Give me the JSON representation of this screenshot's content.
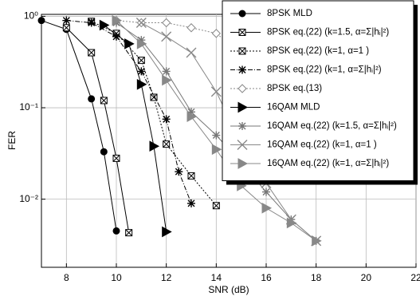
{
  "chart_data": {
    "type": "line",
    "x_label": "SNR (dB)",
    "y_label": "FER",
    "xlim": [
      7,
      22
    ],
    "xticks": [
      8,
      10,
      12,
      14,
      16,
      18,
      20,
      22
    ],
    "ylim": [
      0.0018,
      1.05
    ],
    "log_y": true,
    "grid": true,
    "yticks": [
      {
        "value": 0.01,
        "label": "10⁻²"
      },
      {
        "value": 0.1,
        "label": "10⁻¹"
      },
      {
        "value": 1,
        "label": "10⁰"
      }
    ],
    "legend": "upper right",
    "series": [
      {
        "name": "8PSK MLD",
        "color": "#000000",
        "marker": "circle",
        "dash": "solid",
        "x": [
          7,
          8,
          9,
          9.5,
          10
        ],
        "values": [
          0.9,
          0.72,
          0.125,
          0.033,
          0.0045
        ]
      },
      {
        "name": "8PSK eq.(22) (k=1.5, α=Σ|hᵢ|²)",
        "color": "#000000",
        "marker": "boxx",
        "dash": "solid",
        "x": [
          8,
          9,
          9.5,
          10,
          10.5
        ],
        "values": [
          0.75,
          0.4,
          0.12,
          0.028,
          0.0043
        ]
      },
      {
        "name": "8PSK eq.(22) (k=1, α=1 )",
        "color": "#000000",
        "marker": "boxx",
        "dash": "dot",
        "x": [
          9,
          10,
          11,
          11.5,
          12,
          13,
          14
        ],
        "values": [
          0.88,
          0.65,
          0.33,
          0.13,
          0.04,
          0.018,
          0.0085
        ]
      },
      {
        "name": "8PSK eq.(22) (k=1, α=Σ|hᵢ|²)",
        "color": "#000000",
        "marker": "asterisk",
        "dash": "dashdot",
        "x": [
          8,
          9,
          10,
          11,
          12,
          12.5,
          13
        ],
        "values": [
          0.9,
          0.85,
          0.6,
          0.25,
          0.075,
          0.02,
          0.009
        ]
      },
      {
        "name": "8PSK eq.(13)",
        "color": "#888888",
        "marker": "diamond",
        "dash": "dot",
        "x": [
          10,
          11,
          12,
          13,
          14,
          15,
          16
        ],
        "values": [
          0.9,
          0.85,
          0.85,
          0.75,
          0.65,
          0.4,
          0.15
        ]
      },
      {
        "name": "16QAM MLD",
        "color": "#000000",
        "marker": "tri",
        "dash": "solid",
        "x": [
          9.5,
          10.5,
          11,
          11.5,
          12
        ],
        "values": [
          0.8,
          0.5,
          0.18,
          0.038,
          0.0044
        ]
      },
      {
        "name": "16QAM eq.(22) (k=1.5, α=Σ|hᵢ|²)",
        "color": "#777777",
        "marker": "asterisk",
        "dash": "solid",
        "x": [
          10,
          11,
          12,
          13,
          14,
          15,
          16,
          17,
          18
        ],
        "values": [
          0.85,
          0.55,
          0.25,
          0.09,
          0.05,
          0.025,
          0.012,
          0.006,
          0.0035
        ]
      },
      {
        "name": "16QAM eq.(22) (k=1, α=1 )",
        "color": "#888888",
        "marker": "bigx",
        "dash": "solid",
        "x": [
          11,
          12,
          13,
          14,
          15,
          16,
          17,
          18
        ],
        "values": [
          0.85,
          0.6,
          0.4,
          0.15,
          0.04,
          0.015,
          0.006,
          0.0035
        ]
      },
      {
        "name": "16QAM eq.(22) (k=1, α=Σ|hᵢ|²)",
        "color": "#888888",
        "marker": "tri",
        "dash": "solid",
        "x": [
          10,
          11,
          12,
          13,
          14,
          15,
          16,
          17,
          18
        ],
        "values": [
          0.9,
          0.5,
          0.2,
          0.08,
          0.035,
          0.014,
          0.008,
          0.0055,
          0.0035
        ]
      }
    ]
  }
}
